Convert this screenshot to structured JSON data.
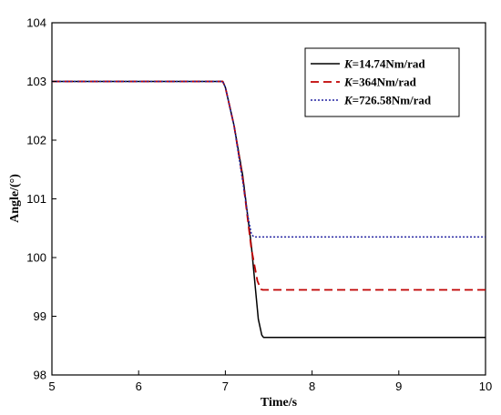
{
  "chart_data": {
    "type": "line",
    "title": "",
    "xlabel": "Time/s",
    "ylabel": "Angle/(°)",
    "xlim": [
      5,
      10
    ],
    "ylim": [
      98,
      104
    ],
    "xticks": [
      "5",
      "6",
      "7",
      "8",
      "9",
      "10"
    ],
    "yticks": [
      "98",
      "99",
      "100",
      "101",
      "102",
      "103",
      "104"
    ],
    "grid": false,
    "legend_position": "top-right",
    "series": [
      {
        "name_prefix": "K",
        "name_suffix": "=14.74Nm/rad",
        "color": "#000000",
        "style": "solid",
        "x": [
          5,
          6.9,
          6.97,
          7.0,
          7.1,
          7.2,
          7.3,
          7.38,
          7.42,
          7.44,
          7.5,
          10
        ],
        "y": [
          103,
          103,
          103,
          102.9,
          102.25,
          101.4,
          100.2,
          98.95,
          98.68,
          98.64,
          98.64,
          98.64
        ]
      },
      {
        "name_prefix": "K",
        "name_suffix": "=364Nm/rad",
        "color": "#c00000",
        "style": "dashed",
        "x": [
          5,
          6.9,
          6.97,
          7.0,
          7.1,
          7.2,
          7.3,
          7.37,
          7.41,
          7.43,
          7.5,
          10
        ],
        "y": [
          103,
          103,
          103,
          102.9,
          102.25,
          101.35,
          100.15,
          99.6,
          99.46,
          99.45,
          99.45,
          99.45
        ]
      },
      {
        "name_prefix": "K",
        "name_suffix": "=726.58Nm/rad",
        "color": "#2020a0",
        "style": "dotted",
        "x": [
          5,
          6.9,
          6.97,
          7.0,
          7.1,
          7.2,
          7.26,
          7.3,
          7.33,
          10
        ],
        "y": [
          103,
          103,
          103,
          102.9,
          102.25,
          101.3,
          100.7,
          100.4,
          100.35,
          100.35
        ]
      }
    ]
  }
}
